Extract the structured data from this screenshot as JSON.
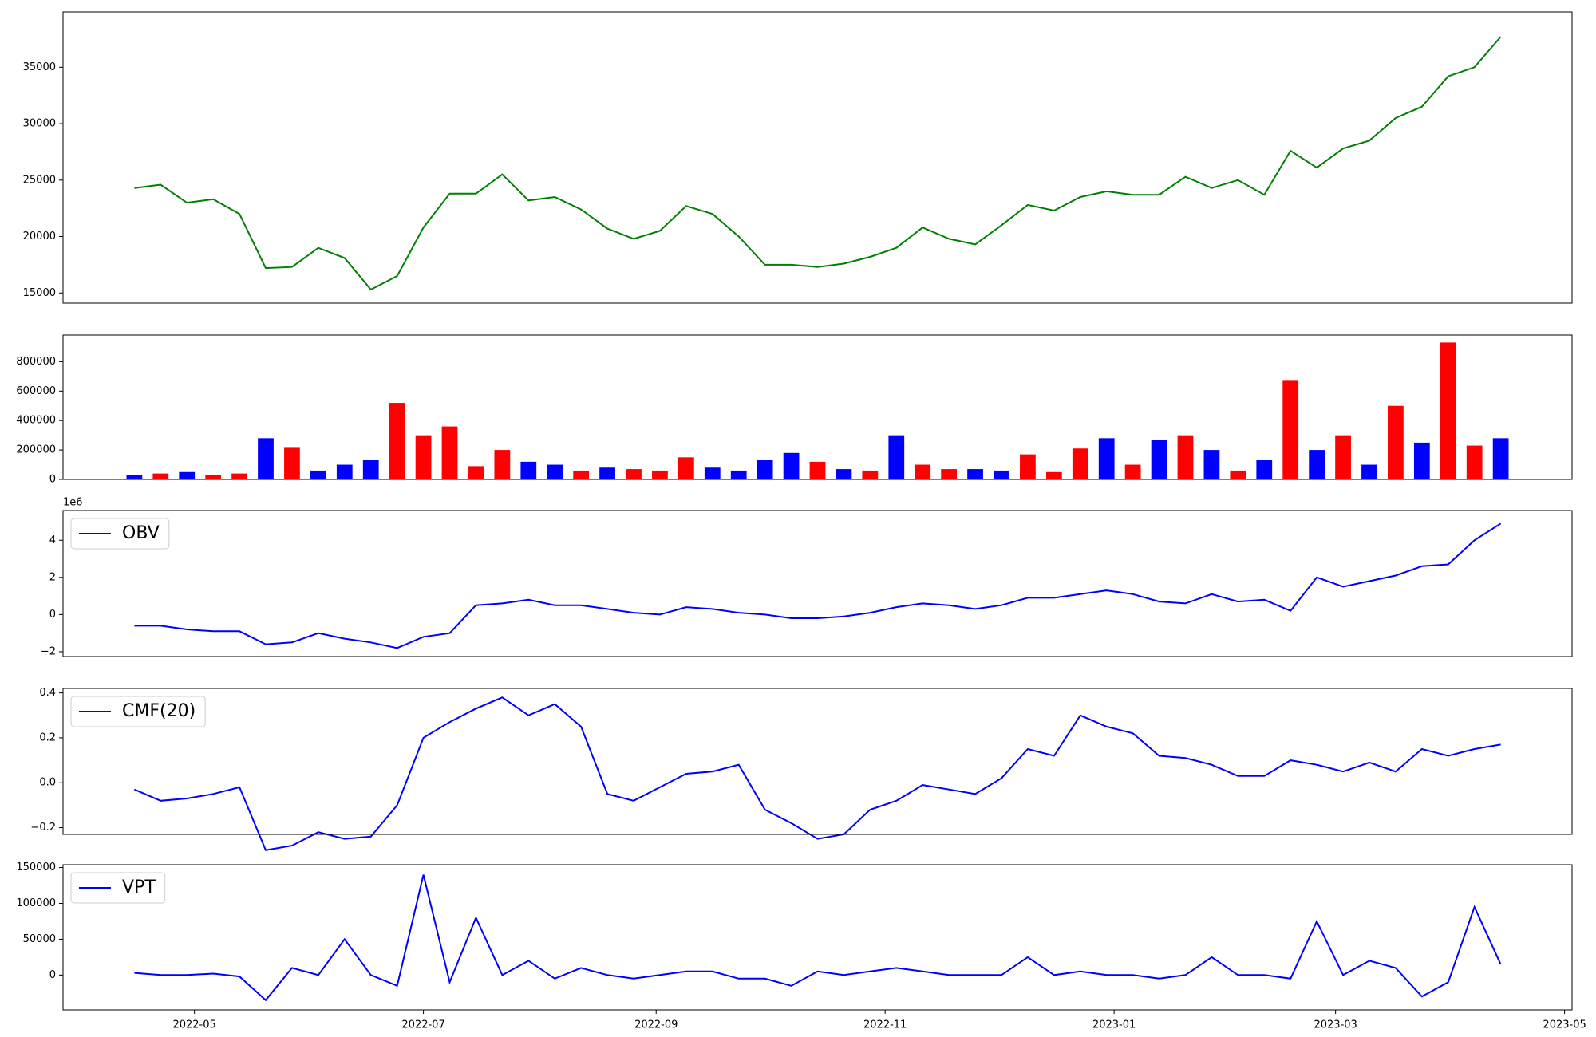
{
  "chart_data": [
    {
      "type": "line",
      "color": "green",
      "x": [
        "2022-04-15",
        "2022-04-22",
        "2022-04-29",
        "2022-05-06",
        "2022-05-13",
        "2022-05-20",
        "2022-05-27",
        "2022-06-03",
        "2022-06-10",
        "2022-06-17",
        "2022-06-24",
        "2022-07-01",
        "2022-07-08",
        "2022-07-15",
        "2022-07-22",
        "2022-07-29",
        "2022-08-05",
        "2022-08-12",
        "2022-08-19",
        "2022-08-26",
        "2022-09-02",
        "2022-09-09",
        "2022-09-16",
        "2022-09-23",
        "2022-09-30",
        "2022-10-07",
        "2022-10-14",
        "2022-10-21",
        "2022-10-28",
        "2022-11-04",
        "2022-11-11",
        "2022-11-18",
        "2022-11-25",
        "2022-12-02",
        "2022-12-09",
        "2022-12-16",
        "2022-12-23",
        "2022-12-30",
        "2023-01-06",
        "2023-01-13",
        "2023-01-20",
        "2023-01-27",
        "2023-02-03",
        "2023-02-10",
        "2023-02-17",
        "2023-02-24",
        "2023-03-03",
        "2023-03-10",
        "2023-03-17",
        "2023-03-24",
        "2023-03-31",
        "2023-04-07",
        "2023-04-14"
      ],
      "values": [
        24300,
        24600,
        23000,
        23300,
        22000,
        17200,
        17300,
        19000,
        18100,
        15300,
        16500,
        20800,
        23800,
        23800,
        25500,
        23200,
        23500,
        22400,
        20700,
        19800,
        20500,
        22700,
        22000,
        20000,
        17500,
        17500,
        17300,
        17600,
        18200,
        19000,
        20800,
        19800,
        19300,
        21000,
        22800,
        22300,
        23500,
        24000,
        23700,
        23700,
        25300,
        24300,
        25000,
        23700,
        27600,
        26100,
        27800,
        28500,
        30500,
        31500,
        34200,
        35000,
        37700
      ],
      "xlim": [
        "2022-03-27",
        "2023-05-03"
      ],
      "ylim": [
        14100,
        39900
      ],
      "yticks": [
        15000,
        20000,
        25000,
        30000,
        35000
      ]
    },
    {
      "type": "bar",
      "x": [
        "2022-04-15",
        "2022-04-22",
        "2022-04-29",
        "2022-05-06",
        "2022-05-13",
        "2022-05-20",
        "2022-05-27",
        "2022-06-03",
        "2022-06-10",
        "2022-06-17",
        "2022-06-24",
        "2022-07-01",
        "2022-07-08",
        "2022-07-15",
        "2022-07-22",
        "2022-07-29",
        "2022-08-05",
        "2022-08-12",
        "2022-08-19",
        "2022-08-26",
        "2022-09-02",
        "2022-09-09",
        "2022-09-16",
        "2022-09-23",
        "2022-09-30",
        "2022-10-07",
        "2022-10-14",
        "2022-10-21",
        "2022-10-28",
        "2022-11-04",
        "2022-11-11",
        "2022-11-18",
        "2022-11-25",
        "2022-12-02",
        "2022-12-09",
        "2022-12-16",
        "2022-12-23",
        "2022-12-30",
        "2023-01-06",
        "2023-01-13",
        "2023-01-20",
        "2023-01-27",
        "2023-02-03",
        "2023-02-10",
        "2023-02-17",
        "2023-02-24",
        "2023-03-03",
        "2023-03-10",
        "2023-03-17",
        "2023-03-24",
        "2023-03-31",
        "2023-04-07",
        "2023-04-14"
      ],
      "values": [
        30000,
        40000,
        50000,
        30000,
        40000,
        280000,
        220000,
        60000,
        100000,
        130000,
        520000,
        300000,
        360000,
        90000,
        200000,
        120000,
        100000,
        60000,
        80000,
        70000,
        60000,
        150000,
        80000,
        60000,
        130000,
        180000,
        120000,
        70000,
        60000,
        300000,
        100000,
        70000,
        70000,
        60000,
        170000,
        50000,
        210000,
        280000,
        100000,
        270000,
        300000,
        200000,
        60000,
        130000,
        670000,
        200000,
        300000,
        100000,
        500000,
        250000,
        930000,
        230000,
        280000
      ],
      "colors": [
        "blue",
        "red",
        "blue",
        "red",
        "red",
        "blue",
        "red",
        "blue",
        "blue",
        "blue",
        "red",
        "red",
        "red",
        "red",
        "red",
        "blue",
        "blue",
        "red",
        "blue",
        "red",
        "red",
        "red",
        "blue",
        "blue",
        "blue",
        "blue",
        "red",
        "blue",
        "red",
        "blue",
        "red",
        "red",
        "blue",
        "blue",
        "red",
        "red",
        "red",
        "blue",
        "red",
        "blue",
        "red",
        "blue",
        "red",
        "blue",
        "red",
        "blue",
        "red",
        "blue",
        "red",
        "blue",
        "red",
        "red",
        "blue"
      ],
      "xlim": [
        "2022-03-27",
        "2023-05-03"
      ],
      "ylim": [
        0,
        981000
      ],
      "yticks": [
        0,
        200000,
        400000,
        600000,
        800000
      ]
    },
    {
      "type": "line",
      "legend": "upper left",
      "y_offset_label": "1e6",
      "x": [
        "2022-04-15",
        "2022-04-22",
        "2022-04-29",
        "2022-05-06",
        "2022-05-13",
        "2022-05-20",
        "2022-05-27",
        "2022-06-03",
        "2022-06-10",
        "2022-06-17",
        "2022-06-24",
        "2022-07-01",
        "2022-07-08",
        "2022-07-15",
        "2022-07-22",
        "2022-07-29",
        "2022-08-05",
        "2022-08-12",
        "2022-08-19",
        "2022-08-26",
        "2022-09-02",
        "2022-09-09",
        "2022-09-16",
        "2022-09-23",
        "2022-09-30",
        "2022-10-07",
        "2022-10-14",
        "2022-10-21",
        "2022-10-28",
        "2022-11-04",
        "2022-11-11",
        "2022-11-18",
        "2022-11-25",
        "2022-12-02",
        "2022-12-09",
        "2022-12-16",
        "2022-12-23",
        "2022-12-30",
        "2023-01-06",
        "2023-01-13",
        "2023-01-20",
        "2023-01-27",
        "2023-02-03",
        "2023-02-10",
        "2023-02-17",
        "2023-02-24",
        "2023-03-03",
        "2023-03-10",
        "2023-03-17",
        "2023-03-24",
        "2023-03-31",
        "2023-04-07",
        "2023-04-14"
      ],
      "series": [
        {
          "name": "OBV",
          "color": "blue",
          "values": [
            -0.6,
            -0.6,
            -0.8,
            -0.9,
            -0.9,
            -1.6,
            -1.5,
            -1.0,
            -1.3,
            -1.5,
            -1.8,
            -1.2,
            -1.0,
            0.5,
            0.6,
            0.8,
            0.5,
            0.5,
            0.3,
            0.1,
            0.0,
            0.4,
            0.3,
            0.1,
            0.0,
            -0.2,
            -0.2,
            -0.1,
            0.1,
            0.4,
            0.6,
            0.5,
            0.3,
            0.5,
            0.9,
            0.9,
            1.1,
            1.3,
            1.1,
            0.7,
            0.6,
            1.1,
            0.7,
            0.8,
            0.2,
            2.0,
            1.5,
            1.8,
            2.1,
            2.6,
            2.7,
            4.0,
            4.9
          ]
        }
      ],
      "xlim": [
        "2022-03-27",
        "2023-05-03"
      ],
      "ylim": [
        -2.26,
        5.6
      ],
      "yticks": [
        {
          "value": -2,
          "label": "−2"
        },
        0,
        2,
        4
      ]
    },
    {
      "type": "line",
      "legend": "upper left",
      "x": [
        "2022-04-15",
        "2022-04-22",
        "2022-04-29",
        "2022-05-06",
        "2022-05-13",
        "2022-05-20",
        "2022-05-27",
        "2022-06-03",
        "2022-06-10",
        "2022-06-17",
        "2022-06-24",
        "2022-07-01",
        "2022-07-08",
        "2022-07-15",
        "2022-07-22",
        "2022-07-29",
        "2022-08-05",
        "2022-08-12",
        "2022-08-19",
        "2022-08-26",
        "2022-09-02",
        "2022-09-09",
        "2022-09-16",
        "2022-09-23",
        "2022-09-30",
        "2022-10-07",
        "2022-10-14",
        "2022-10-21",
        "2022-10-28",
        "2022-11-04",
        "2022-11-11",
        "2022-11-18",
        "2022-11-25",
        "2022-12-02",
        "2022-12-09",
        "2022-12-16",
        "2022-12-23",
        "2022-12-30",
        "2023-01-06",
        "2023-01-13",
        "2023-01-20",
        "2023-01-27",
        "2023-02-03",
        "2023-02-10",
        "2023-02-17",
        "2023-02-24",
        "2023-03-03",
        "2023-03-10",
        "2023-03-17",
        "2023-03-24",
        "2023-03-31",
        "2023-04-07",
        "2023-04-14"
      ],
      "series": [
        {
          "name": "CMF(20)",
          "color": "blue",
          "values": [
            -0.03,
            -0.08,
            -0.07,
            -0.05,
            -0.02,
            -0.3,
            -0.28,
            -0.22,
            -0.25,
            -0.24,
            -0.1,
            0.2,
            0.27,
            0.33,
            0.38,
            0.3,
            0.35,
            0.25,
            -0.05,
            -0.08,
            -0.02,
            0.04,
            0.05,
            0.08,
            -0.12,
            -0.18,
            -0.25,
            -0.23,
            -0.12,
            -0.08,
            -0.01,
            -0.03,
            -0.05,
            0.02,
            0.15,
            0.12,
            0.3,
            0.25,
            0.22,
            0.12,
            0.11,
            0.08,
            0.03,
            0.03,
            0.1,
            0.08,
            0.05,
            0.09,
            0.05,
            0.15,
            0.12,
            0.15,
            0.17
          ]
        }
      ],
      "xlim": [
        "2022-03-27",
        "2023-05-03"
      ],
      "ylim": [
        -0.23,
        0.42
      ],
      "yticks": [
        {
          "value": -0.2,
          "label": "−0.2"
        },
        {
          "value": 0,
          "label": "0.0"
        },
        0.2,
        0.4
      ]
    },
    {
      "type": "line",
      "legend": "upper left",
      "x": [
        "2022-04-15",
        "2022-04-22",
        "2022-04-29",
        "2022-05-06",
        "2022-05-13",
        "2022-05-20",
        "2022-05-27",
        "2022-06-03",
        "2022-06-10",
        "2022-06-17",
        "2022-06-24",
        "2022-07-01",
        "2022-07-08",
        "2022-07-15",
        "2022-07-22",
        "2022-07-29",
        "2022-08-05",
        "2022-08-12",
        "2022-08-19",
        "2022-08-26",
        "2022-09-02",
        "2022-09-09",
        "2022-09-16",
        "2022-09-23",
        "2022-09-30",
        "2022-10-07",
        "2022-10-14",
        "2022-10-21",
        "2022-10-28",
        "2022-11-04",
        "2022-11-11",
        "2022-11-18",
        "2022-11-25",
        "2022-12-02",
        "2022-12-09",
        "2022-12-16",
        "2022-12-23",
        "2022-12-30",
        "2023-01-06",
        "2023-01-13",
        "2023-01-20",
        "2023-01-27",
        "2023-02-03",
        "2023-02-10",
        "2023-02-17",
        "2023-02-24",
        "2023-03-03",
        "2023-03-10",
        "2023-03-17",
        "2023-03-24",
        "2023-03-31",
        "2023-04-07",
        "2023-04-14"
      ],
      "series": [
        {
          "name": "VPT",
          "color": "blue",
          "values": [
            3000,
            0,
            0,
            2000,
            -2000,
            -35000,
            10000,
            0,
            50000,
            0,
            -15000,
            140000,
            -10000,
            80000,
            0,
            20000,
            -5000,
            10000,
            0,
            -5000,
            0,
            5000,
            5000,
            -5000,
            -5000,
            -15000,
            5000,
            0,
            5000,
            10000,
            5000,
            0,
            0,
            0,
            25000,
            0,
            5000,
            0,
            0,
            -5000,
            0,
            25000,
            0,
            0,
            -5000,
            75000,
            0,
            20000,
            10000,
            -30000,
            -10000,
            95000,
            15000
          ]
        }
      ],
      "xlim": [
        "2022-03-27",
        "2023-05-03"
      ],
      "ylim": [
        -48600,
        154000
      ],
      "yticks": [
        0,
        50000,
        100000,
        150000
      ],
      "xticks": [
        "2022-05",
        "2022-07",
        "2022-09",
        "2022-11",
        "2023-01",
        "2023-03",
        "2023-05"
      ]
    }
  ]
}
